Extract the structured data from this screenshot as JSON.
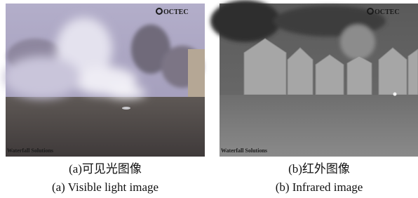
{
  "panels": [
    {
      "watermark": "OCTEC",
      "credit": "Waterfall Solutions",
      "caption_cn": "(a)可见光图像",
      "caption_en": "(a) Visible light image"
    },
    {
      "watermark": "OCTEC",
      "credit": "Waterfall Solutions",
      "caption_cn": "(b)红外图像",
      "caption_en": "(b) Infrared image"
    }
  ]
}
